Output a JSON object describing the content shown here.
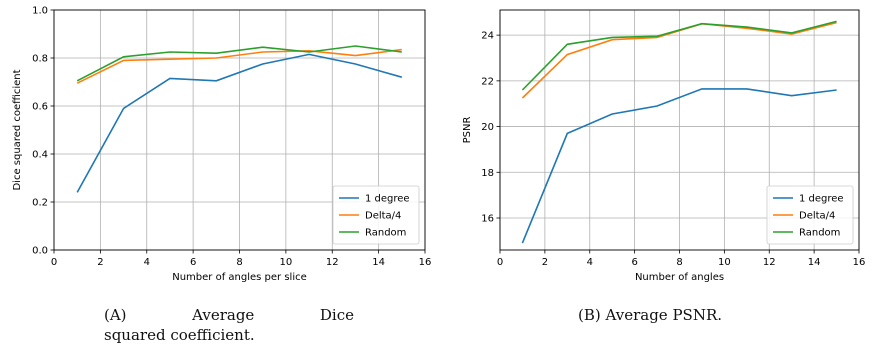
{
  "chart_data": [
    {
      "type": "line",
      "title": "",
      "xlabel": "Number of angles per slice",
      "ylabel": "Dice squared coefficient",
      "xlim": [
        0,
        16
      ],
      "ylim": [
        0.0,
        1.0
      ],
      "xticks": [
        "0",
        "2",
        "4",
        "6",
        "8",
        "10",
        "12",
        "14",
        "16"
      ],
      "yticks": [
        "0.0",
        "0.2",
        "0.4",
        "0.6",
        "0.8",
        "1.0"
      ],
      "grid": true,
      "legend_position": "lower-right",
      "x": [
        1,
        3,
        5,
        7,
        9,
        11,
        13,
        15
      ],
      "series": [
        {
          "name": "1 degree",
          "color": "#1f77b4",
          "values": [
            0.24,
            0.59,
            0.715,
            0.705,
            0.775,
            0.815,
            0.775,
            0.72
          ]
        },
        {
          "name": "Delta/4",
          "color": "#ff7f0e",
          "values": [
            0.695,
            0.79,
            0.795,
            0.8,
            0.825,
            0.83,
            0.81,
            0.835
          ]
        },
        {
          "name": "Random",
          "color": "#2ca02c",
          "values": [
            0.705,
            0.805,
            0.825,
            0.82,
            0.845,
            0.825,
            0.85,
            0.825
          ]
        }
      ]
    },
    {
      "type": "line",
      "title": "",
      "xlabel": "Number of angles",
      "ylabel": "PSNR",
      "xlim": [
        0,
        16
      ],
      "ylim": [
        14.6,
        25.1
      ],
      "xticks": [
        "0",
        "2",
        "4",
        "6",
        "8",
        "10",
        "12",
        "14",
        "16"
      ],
      "yticks": [
        "16",
        "18",
        "20",
        "22",
        "24"
      ],
      "grid": true,
      "legend_position": "lower-right",
      "x": [
        1,
        3,
        5,
        7,
        9,
        11,
        13,
        15
      ],
      "series": [
        {
          "name": "1 degree",
          "color": "#1f77b4",
          "values": [
            14.9,
            19.7,
            20.55,
            20.9,
            21.65,
            21.65,
            21.35,
            21.6
          ]
        },
        {
          "name": "Delta/4",
          "color": "#ff7f0e",
          "values": [
            21.25,
            23.15,
            23.8,
            23.9,
            24.5,
            24.3,
            24.05,
            24.55
          ]
        },
        {
          "name": "Random",
          "color": "#2ca02c",
          "values": [
            21.6,
            23.6,
            23.9,
            23.95,
            24.5,
            24.35,
            24.1,
            24.6
          ]
        }
      ]
    }
  ],
  "captions": {
    "a": {
      "label": "(A)",
      "words": [
        "Average",
        "Dice"
      ],
      "line2": "squared coefficient."
    },
    "b": {
      "label": "(B)",
      "text": "Average PSNR."
    }
  }
}
